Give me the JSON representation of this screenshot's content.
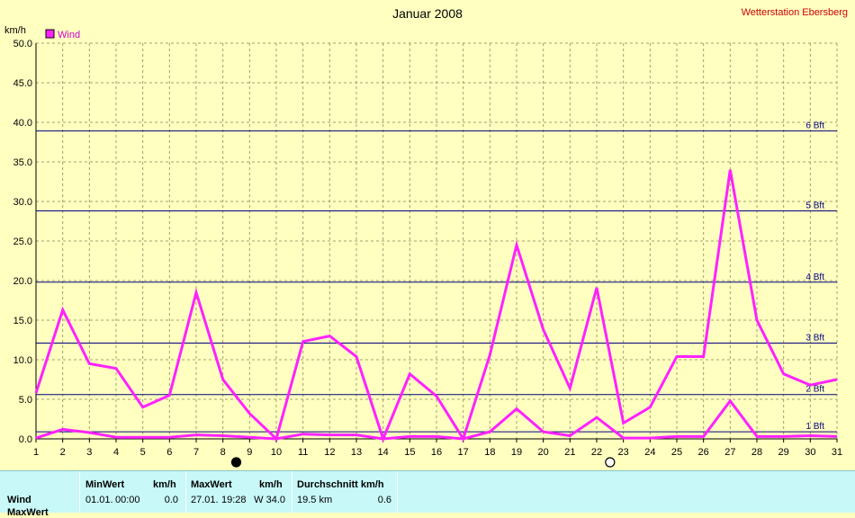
{
  "title": "Januar 2008",
  "station": "Wetterstation Ebersberg",
  "unit": "km/h",
  "legend": {
    "label": "Wind",
    "color": "#ff22ff"
  },
  "colors": {
    "background": "#ffffc0",
    "grid": "#a0a070",
    "beaufort_line": "#000080",
    "series": "#ff22ff",
    "stats_bg": "#c8f8f8"
  },
  "chart_data": {
    "type": "line",
    "title": "Januar 2008",
    "ylabel": "km/h",
    "ylim": [
      0,
      50
    ],
    "yticks": [
      "0.0",
      "5.0",
      "10.0",
      "15.0",
      "20.0",
      "25.0",
      "30.0",
      "35.0",
      "40.0",
      "45.0",
      "50.0"
    ],
    "x": [
      1,
      2,
      3,
      4,
      5,
      6,
      7,
      8,
      9,
      10,
      11,
      12,
      13,
      14,
      15,
      16,
      17,
      18,
      19,
      20,
      21,
      22,
      23,
      24,
      25,
      26,
      27,
      28,
      29,
      30,
      31
    ],
    "xlim": [
      1,
      31
    ],
    "grid": true,
    "legend_position": "top-left",
    "series": [
      {
        "name": "Wind",
        "values": [
          5.8,
          16.3,
          9.5,
          8.9,
          4.0,
          5.5,
          18.5,
          7.5,
          3.2,
          0.0,
          12.3,
          13.0,
          10.4,
          0.0,
          8.2,
          5.4,
          0.0,
          10.6,
          24.5,
          13.8,
          6.4,
          19.1,
          2.0,
          4.0,
          10.4,
          10.4,
          34.0,
          15.0,
          8.2,
          6.8,
          7.5
        ]
      },
      {
        "name": "",
        "values": [
          0.1,
          1.2,
          0.8,
          0.2,
          0.2,
          0.2,
          0.5,
          0.4,
          0.2,
          0.0,
          0.6,
          0.5,
          0.5,
          0.0,
          0.3,
          0.3,
          0.0,
          0.9,
          3.8,
          0.9,
          0.4,
          2.7,
          0.1,
          0.1,
          0.3,
          0.3,
          4.8,
          0.3,
          0.3,
          0.4,
          0.3
        ]
      }
    ],
    "beaufort": [
      {
        "label": "1 Bft",
        "value": 0.9
      },
      {
        "label": "2 Bft",
        "value": 5.6
      },
      {
        "label": "3 Bft",
        "value": 12.1
      },
      {
        "label": "4 Bft",
        "value": 19.8
      },
      {
        "label": "5 Bft",
        "value": 28.8
      },
      {
        "label": "6 Bft",
        "value": 38.9
      }
    ],
    "moon_phases": [
      {
        "x": 8.5,
        "type": "full"
      },
      {
        "x": 22.5,
        "type": "new"
      }
    ]
  },
  "stats": {
    "row_label": "Wind",
    "row2_label": "MaxWert",
    "min_header": "MinWert",
    "min_unit": "km/h",
    "min_date": "01.01.",
    "min_time": "00:00",
    "min_value": "0.0",
    "max_header": "MaxWert",
    "max_unit": "km/h",
    "max_date": "27.01.",
    "max_time": "19:28",
    "max_value": "W 34.0",
    "avg_header": "Durchschnitt km/h",
    "avg_extra": "19.5 km",
    "avg_value": "0.6"
  }
}
